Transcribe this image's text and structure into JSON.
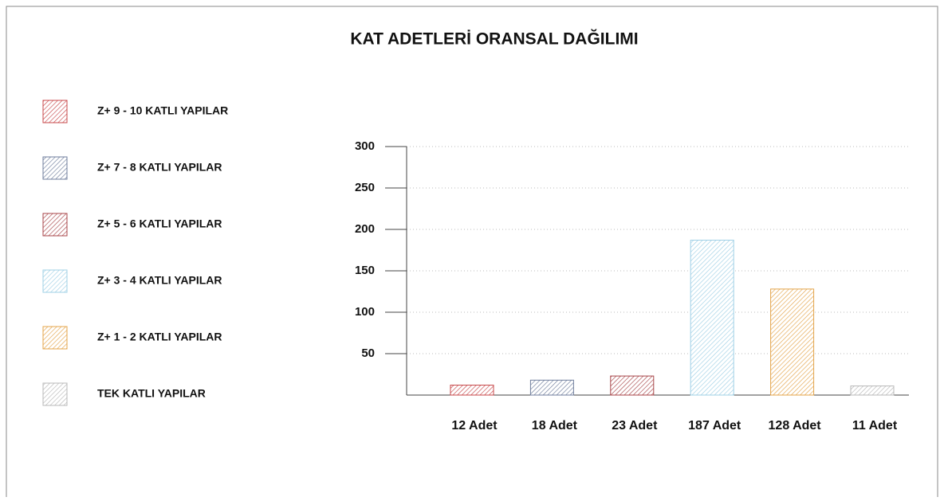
{
  "chart_data": {
    "type": "bar",
    "title": "KAT ADETLERİ ORANSAL DAĞILIMI",
    "categories": [
      "Z+ 9 - 10 KATLI YAPILAR",
      "Z+ 7 - 8 KATLI YAPILAR",
      "Z+ 5 - 6 KATLI YAPILAR",
      "Z+ 3 - 4 KATLI YAPILAR",
      "Z+ 1 - 2 KATLI YAPILAR",
      "TEK KATLI YAPILAR"
    ],
    "values": [
      12,
      18,
      23,
      187,
      128,
      11
    ],
    "value_labels": [
      "12 Adet",
      "18 Adet",
      "23 Adet",
      "187 Adet",
      "128 Adet",
      "11 Adet"
    ],
    "colors": [
      "#c8494b",
      "#6f7e9c",
      "#a8464a",
      "#9fd0e6",
      "#e4a44a",
      "#b8b8b8"
    ],
    "ylim": [
      0,
      300
    ],
    "yticks": [
      50,
      100,
      150,
      200,
      250,
      300
    ],
    "grid": true
  }
}
